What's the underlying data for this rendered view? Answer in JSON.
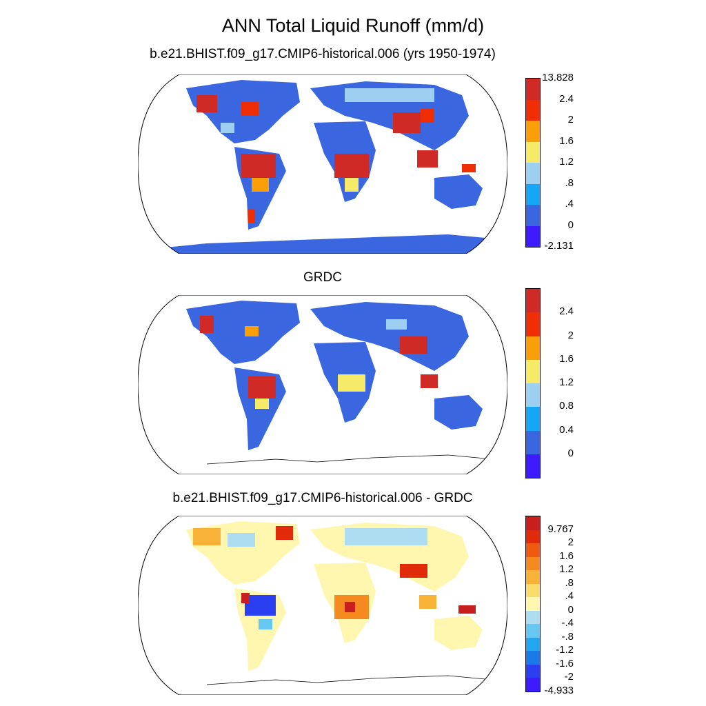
{
  "title": "ANN Total Liquid Runoff (mm/d)",
  "panels": [
    {
      "title": "b.e21.BHIST.f09_g17.CMIP6-historical.006 (yrs 1950-1974)",
      "colors": [
        "#3d1aff",
        "#3a66e0",
        "#15a6f5",
        "#9ccff0",
        "#f5eb68",
        "#fa9e09",
        "#ef2e05",
        "#cf2a26"
      ],
      "labels": [
        "-2.131",
        "0",
        ".4",
        ".8",
        "1.2",
        "1.6",
        "2",
        "2.4",
        "13.828"
      ]
    },
    {
      "title": "GRDC",
      "colors": [
        "#3d1aff",
        "#3a66e0",
        "#15a6f5",
        "#9ccff0",
        "#f5eb68",
        "#fa9e09",
        "#ef2e05",
        "#cf2a26"
      ],
      "labels": [
        "",
        "0",
        "0.4",
        "0.8",
        "1.2",
        "1.6",
        "2",
        "2.4",
        ""
      ]
    },
    {
      "title": "b.e21.BHIST.f09_g17.CMIP6-historical.006 - GRDC",
      "colors": [
        "#3d1aff",
        "#2a40f0",
        "#1a7ae8",
        "#22a6f0",
        "#66c8f2",
        "#aedcf0",
        "#fff7b0",
        "#fbdc6a",
        "#f7b237",
        "#f48a20",
        "#ee5a10",
        "#e02a0a",
        "#c81e1e"
      ],
      "labels": [
        "-4.933",
        "-2",
        "-1.6",
        "-1.2",
        "-.8",
        "-.4",
        "0",
        ".4",
        ".8",
        "1.2",
        "1.6",
        "2",
        "9.767"
      ]
    }
  ]
}
